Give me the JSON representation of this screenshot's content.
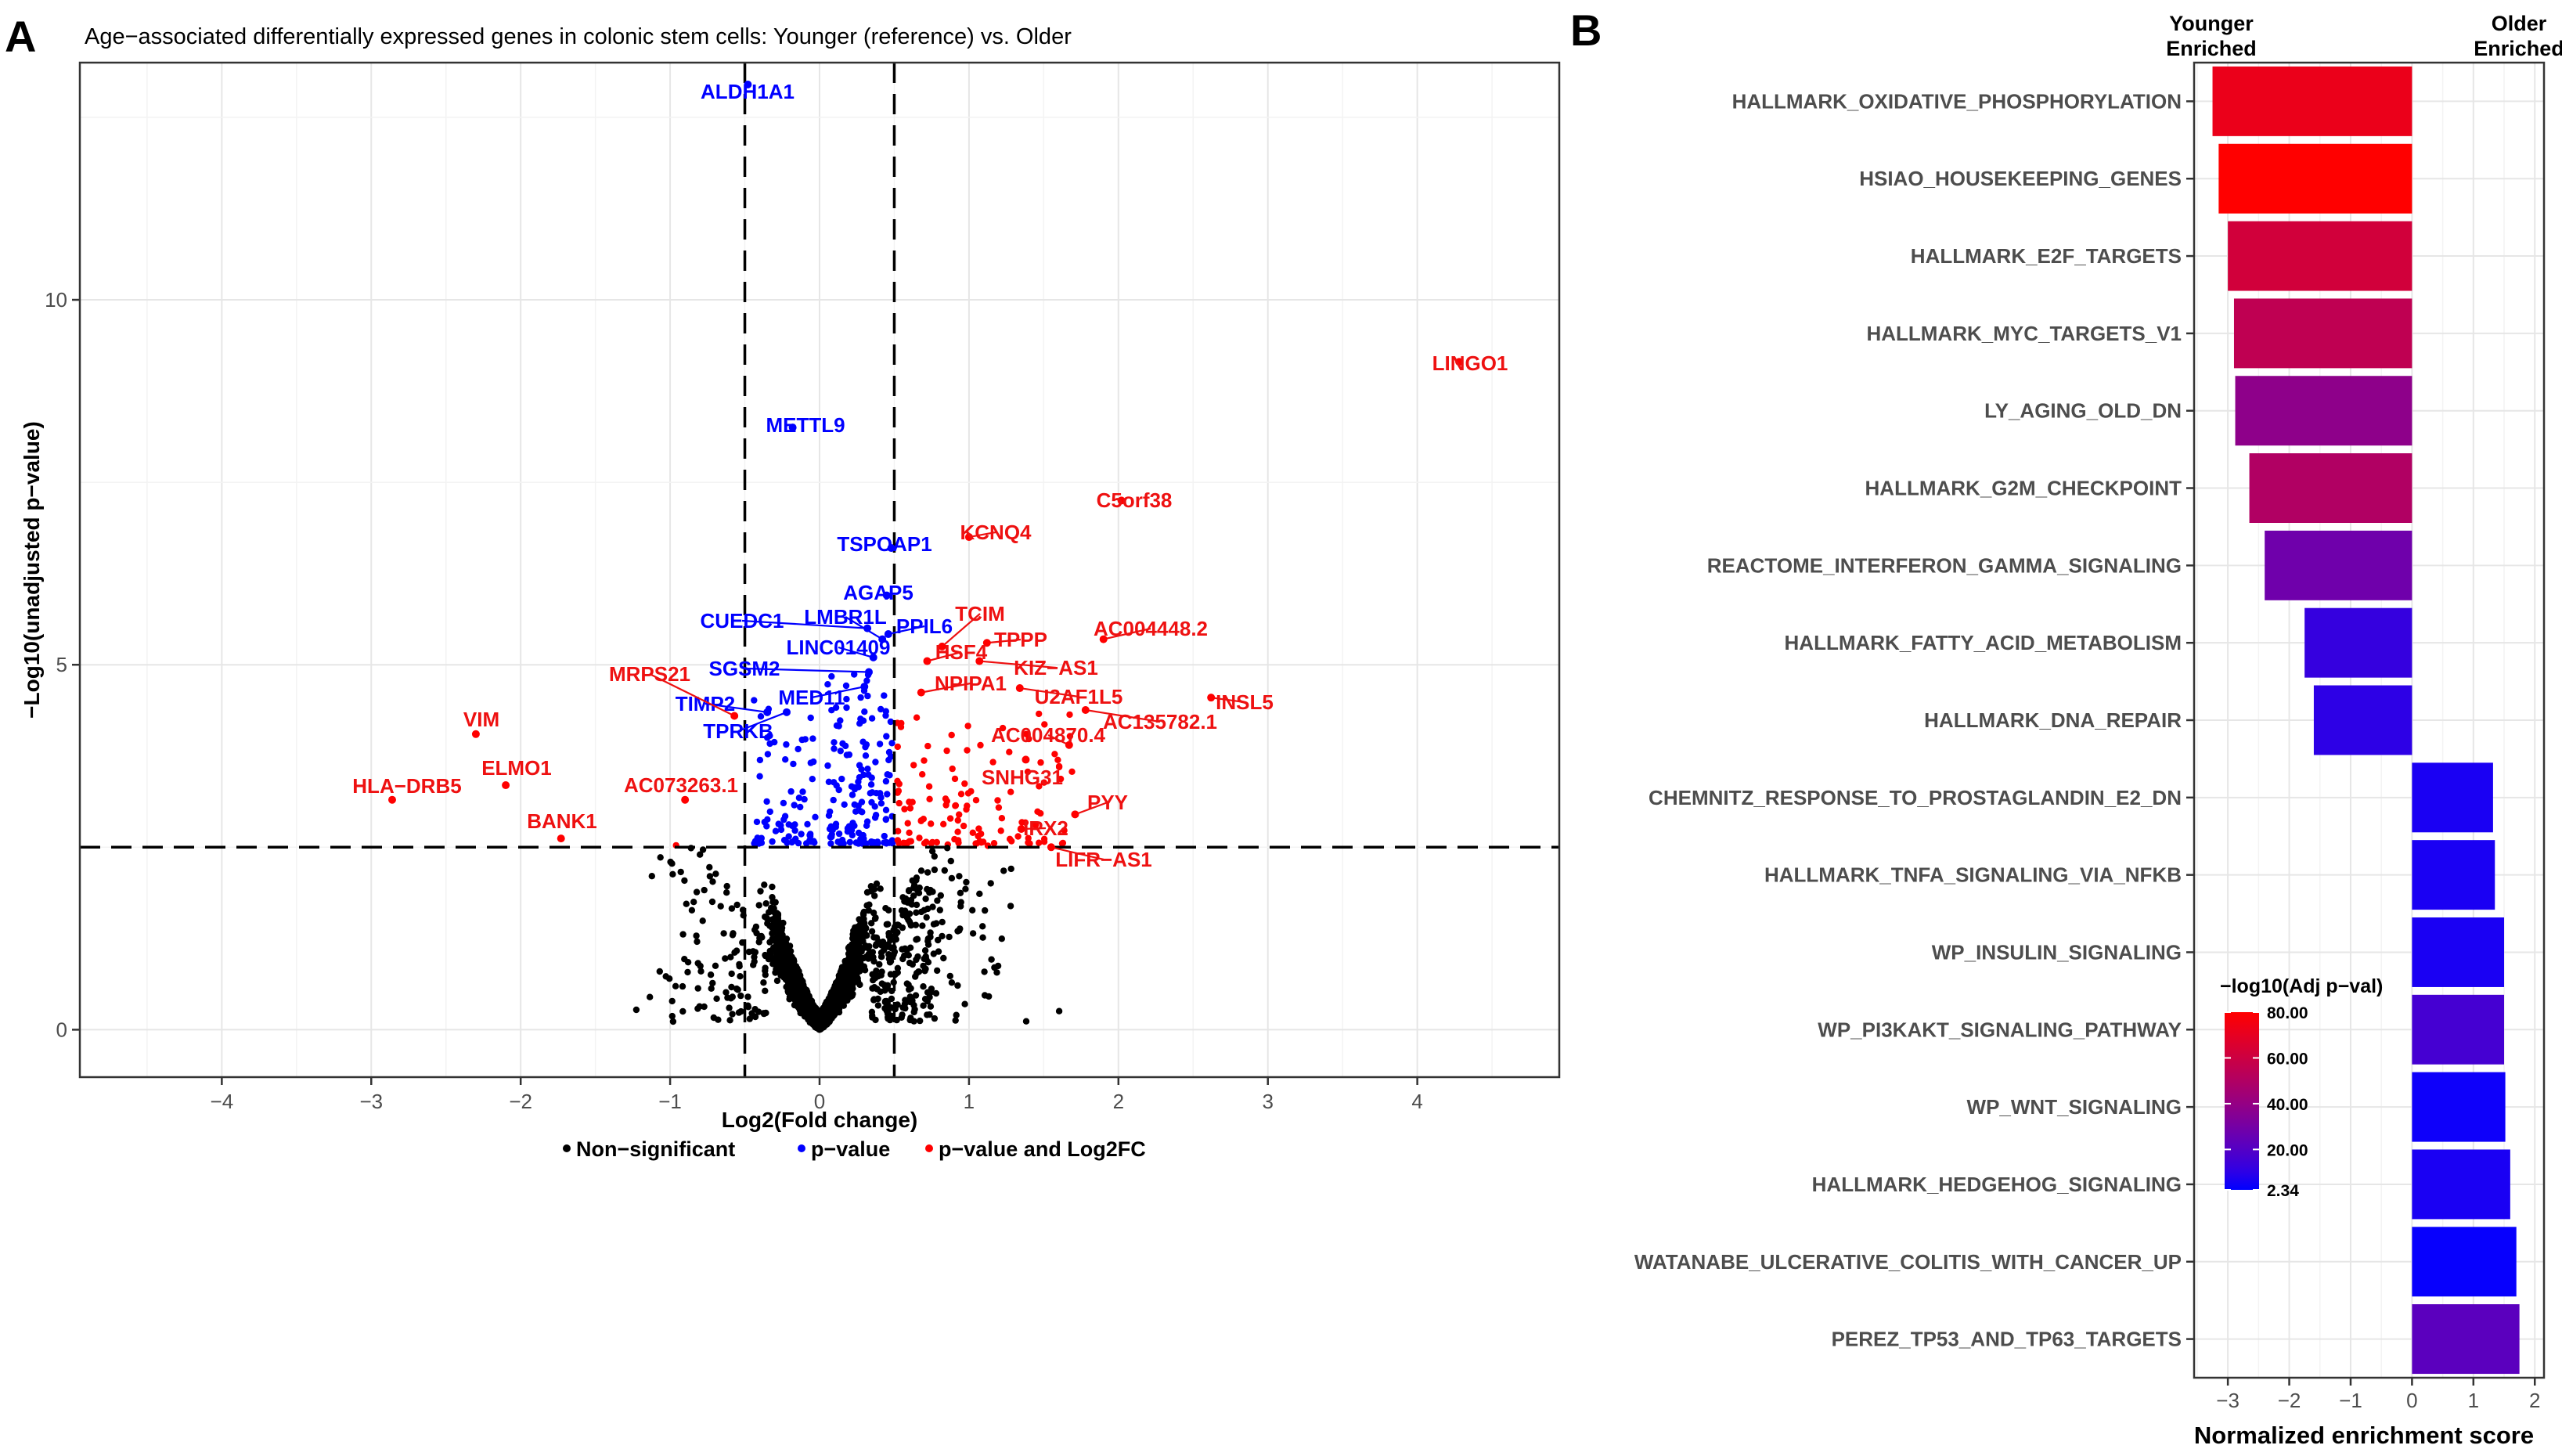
{
  "figure": {
    "panel_a_letter": "A",
    "panel_b_letter": "B"
  },
  "chart_data": [
    {
      "type": "scatter",
      "title": "Age−associated differentially expressed genes in colonic stem cells: Younger (reference) vs. Older",
      "xlabel": "Log2(Fold change)",
      "ylabel": "−Log10(unadjusted p−value)",
      "xlim": [
        -4.95,
        4.95
      ],
      "ylim": [
        -0.65,
        13.25
      ],
      "xticks": [
        -4,
        -3,
        -2,
        -1,
        0,
        1,
        2,
        3,
        4
      ],
      "xtick_labels": [
        "−4",
        "−3",
        "−2",
        "−1",
        "0",
        "1",
        "2",
        "3",
        "4"
      ],
      "yticks": [
        0,
        5,
        10
      ],
      "ytick_labels": [
        "0",
        "5",
        "10"
      ],
      "grid": true,
      "thresholds": {
        "log2fc": [
          -0.5,
          0.5
        ],
        "neg_log10_p": 2.5
      },
      "colors": {
        "ns": "#000000",
        "p": "#0000ff",
        "both": "#ff0000",
        "label_blue": "#0000ff",
        "label_red": "#ee1111"
      },
      "legend": {
        "position": "bottom",
        "entries": [
          {
            "name": "Non−significant",
            "color": "#000000"
          },
          {
            "name": "p−value",
            "color": "#0000ff"
          },
          {
            "name": "p−value and Log2FC",
            "color": "#ff0000"
          }
        ]
      },
      "labeled_genes": [
        {
          "gene": "ALDH1A1",
          "x": -0.48,
          "y": 12.95,
          "group": "p"
        },
        {
          "gene": "METTL9",
          "x": -0.18,
          "y": 8.25,
          "group": "p"
        },
        {
          "gene": "TSPOAP1",
          "x": 0.48,
          "y": 6.6,
          "group": "p"
        },
        {
          "gene": "AGAP5",
          "x": 0.45,
          "y": 5.95,
          "group": "p"
        },
        {
          "gene": "CUEDC1",
          "x": 0.32,
          "y": 5.5,
          "group": "p"
        },
        {
          "gene": "LMBR1L",
          "x": 0.42,
          "y": 5.35,
          "group": "p"
        },
        {
          "gene": "PPIL6",
          "x": 0.46,
          "y": 5.42,
          "group": "p"
        },
        {
          "gene": "LINC01409",
          "x": 0.36,
          "y": 5.1,
          "group": "p"
        },
        {
          "gene": "SGSM2",
          "x": 0.33,
          "y": 4.9,
          "group": "p"
        },
        {
          "gene": "MED11",
          "x": 0.3,
          "y": 4.7,
          "group": "p"
        },
        {
          "gene": "TIMP2",
          "x": -0.35,
          "y": 4.35,
          "group": "p"
        },
        {
          "gene": "TPRKB",
          "x": -0.22,
          "y": 4.35,
          "group": "p"
        },
        {
          "gene": "LINGO1",
          "x": 4.28,
          "y": 9.15,
          "group": "both"
        },
        {
          "gene": "C5orf38",
          "x": 2.02,
          "y": 7.25,
          "group": "both"
        },
        {
          "gene": "KCNQ4",
          "x": 1.0,
          "y": 6.75,
          "group": "both"
        },
        {
          "gene": "TCIM",
          "x": 0.82,
          "y": 5.25,
          "group": "both"
        },
        {
          "gene": "AC004448.2",
          "x": 1.9,
          "y": 5.35,
          "group": "both"
        },
        {
          "gene": "TPPP",
          "x": 1.12,
          "y": 5.3,
          "group": "both"
        },
        {
          "gene": "HSF4",
          "x": 0.72,
          "y": 5.05,
          "group": "both"
        },
        {
          "gene": "KIZ−AS1",
          "x": 1.07,
          "y": 5.05,
          "group": "both"
        },
        {
          "gene": "NPIPA1",
          "x": 0.68,
          "y": 4.62,
          "group": "both"
        },
        {
          "gene": "U2AF1L5",
          "x": 1.34,
          "y": 4.68,
          "group": "both"
        },
        {
          "gene": "INSL5",
          "x": 2.62,
          "y": 4.55,
          "group": "both"
        },
        {
          "gene": "AC135782.1",
          "x": 1.78,
          "y": 4.38,
          "group": "both"
        },
        {
          "gene": "AC004870.4",
          "x": 1.67,
          "y": 3.9,
          "group": "both"
        },
        {
          "gene": "SNHG31",
          "x": 1.38,
          "y": 3.7,
          "group": "both"
        },
        {
          "gene": "PYY",
          "x": 1.71,
          "y": 2.95,
          "group": "both"
        },
        {
          "gene": "IRX2",
          "x": 1.35,
          "y": 2.75,
          "group": "both"
        },
        {
          "gene": "LIFR−AS1",
          "x": 1.55,
          "y": 2.5,
          "group": "both"
        },
        {
          "gene": "MRPS21",
          "x": -0.57,
          "y": 4.3,
          "group": "both"
        },
        {
          "gene": "VIM",
          "x": -2.3,
          "y": 4.05,
          "group": "both"
        },
        {
          "gene": "ELMO1",
          "x": -2.1,
          "y": 3.35,
          "group": "both"
        },
        {
          "gene": "HLA−DRB5",
          "x": -2.86,
          "y": 3.15,
          "group": "both"
        },
        {
          "gene": "AC073263.1",
          "x": -0.9,
          "y": 3.15,
          "group": "both"
        },
        {
          "gene": "BANK1",
          "x": -1.73,
          "y": 2.62,
          "group": "both"
        }
      ]
    },
    {
      "type": "bar",
      "orientation": "horizontal",
      "xlabel": "Normalized enrichment score",
      "xlim": [
        -3.55,
        2.15
      ],
      "xticks": [
        -3,
        -2,
        -1,
        0,
        1,
        2
      ],
      "xtick_labels": [
        "−3",
        "−2",
        "−1",
        "0",
        "1",
        "2"
      ],
      "grid": true,
      "header_left": [
        "Younger",
        "Enriched"
      ],
      "header_right": [
        "Older",
        "Enriched"
      ],
      "categories": [
        "HALLMARK_OXIDATIVE_PHOSPHORYLATION",
        "HSIAO_HOUSEKEEPING_GENES",
        "HALLMARK_E2F_TARGETS",
        "HALLMARK_MYC_TARGETS_V1",
        "LY_AGING_OLD_DN",
        "HALLMARK_G2M_CHECKPOINT",
        "REACTOME_INTERFERON_GAMMA_SIGNALING",
        "HALLMARK_FATTY_ACID_METABOLISM",
        "HALLMARK_DNA_REPAIR",
        "CHEMNITZ_RESPONSE_TO_PROSTAGLANDIN_E2_DN",
        "HALLMARK_TNFA_SIGNALING_VIA_NFKB",
        "WP_INSULIN_SIGNALING",
        "WP_PI3KAKT_SIGNALING_PATHWAY",
        "WP_WNT_SIGNALING",
        "HALLMARK_HEDGEHOG_SIGNALING",
        "WATANABE_ULCERATIVE_COLITIS_WITH_CANCER_UP",
        "PEREZ_TP53_AND_TP63_TARGETS"
      ],
      "values": [
        -3.25,
        -3.15,
        -3.0,
        -2.9,
        -2.88,
        -2.65,
        -2.4,
        -1.75,
        -1.6,
        1.32,
        1.35,
        1.5,
        1.5,
        1.52,
        1.6,
        1.7,
        1.75
      ],
      "neg_log10_adj_p": [
        72,
        80,
        62,
        55,
        38,
        50,
        28,
        12,
        10,
        6,
        6,
        6,
        16,
        4,
        6,
        3,
        22
      ],
      "color_legend": {
        "title": "−log10(Adj p−val)",
        "range": [
          2.34,
          80.0
        ],
        "ticks": [
          2.34,
          20.0,
          40.0,
          60.0,
          80.0
        ],
        "tick_labels": [
          "2.34",
          "20.00",
          "40.00",
          "60.00",
          "80.00"
        ],
        "low_color": "#0000ff",
        "high_color": "#ff0000"
      }
    }
  ]
}
